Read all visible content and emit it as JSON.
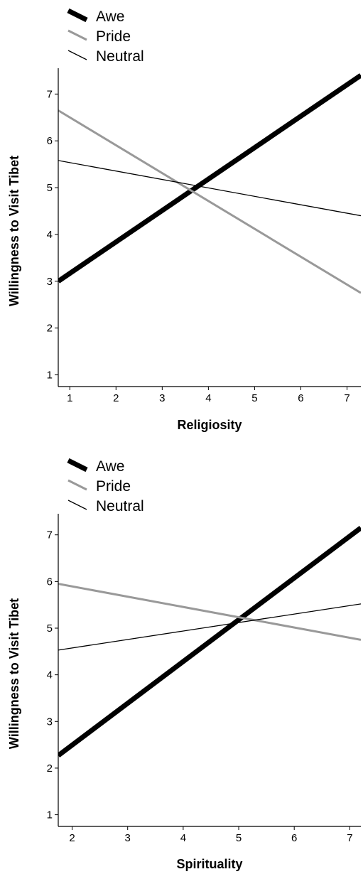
{
  "chart_data": [
    {
      "type": "line",
      "xlabel": "Religiosity",
      "ylabel": "Willingness to Visit Tibet",
      "xlim": [
        0.75,
        7.3
      ],
      "ylim": [
        0.75,
        7.4
      ],
      "xticks": [
        1,
        2,
        3,
        4,
        5,
        6,
        7
      ],
      "yticks": [
        1,
        2,
        3,
        4,
        5,
        6,
        7
      ],
      "legend": "top-left",
      "grid": false,
      "series": [
        {
          "name": "Awe",
          "color": "#000000",
          "style": "thick",
          "points": [
            [
              0.75,
              3.0
            ],
            [
              7.3,
              7.4
            ]
          ]
        },
        {
          "name": "Pride",
          "color": "#999999",
          "style": "medium",
          "points": [
            [
              0.75,
              6.65
            ],
            [
              7.3,
              2.75
            ]
          ]
        },
        {
          "name": "Neutral",
          "color": "#000000",
          "style": "thin",
          "points": [
            [
              0.75,
              5.58
            ],
            [
              7.3,
              4.4
            ]
          ]
        }
      ]
    },
    {
      "type": "line",
      "xlabel": "Spirituality",
      "ylabel": "Willingness to Visit Tibet",
      "xlim": [
        1.75,
        7.2
      ],
      "ylim": [
        0.75,
        7.3
      ],
      "xticks": [
        2,
        3,
        4,
        5,
        6,
        7
      ],
      "yticks": [
        1,
        2,
        3,
        4,
        5,
        6,
        7
      ],
      "legend": "top-left",
      "grid": false,
      "series": [
        {
          "name": "Awe",
          "color": "#000000",
          "style": "thick",
          "points": [
            [
              1.75,
              2.27
            ],
            [
              7.2,
              7.15
            ]
          ]
        },
        {
          "name": "Pride",
          "color": "#999999",
          "style": "medium",
          "points": [
            [
              1.75,
              5.95
            ],
            [
              7.2,
              4.75
            ]
          ]
        },
        {
          "name": "Neutral",
          "color": "#000000",
          "style": "thin",
          "points": [
            [
              1.75,
              4.53
            ],
            [
              7.2,
              5.52
            ]
          ]
        }
      ]
    }
  ]
}
